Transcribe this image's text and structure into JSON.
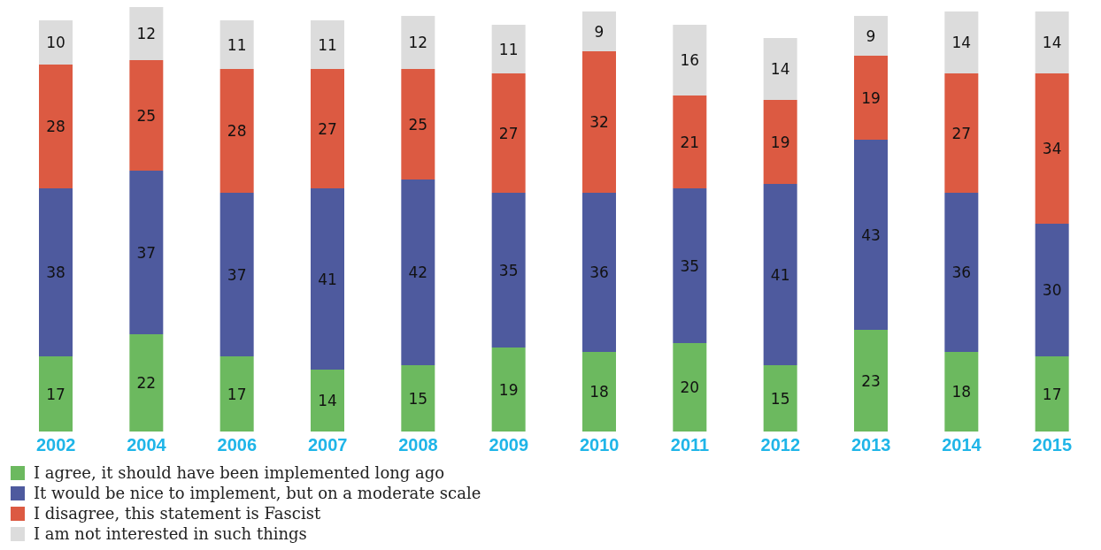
{
  "chart_data": {
    "type": "bar",
    "stacked": true,
    "data_labels": true,
    "tick_labels": "x",
    "grid": false,
    "legend": "bottom left",
    "categories": [
      "2002",
      "2004",
      "2006",
      "2007",
      "2008",
      "2009",
      "2010",
      "2011",
      "2012",
      "2013",
      "2014",
      "2015"
    ],
    "series": [
      {
        "name": "I agree, it should have been implemented long ago",
        "color": "#6cb95f",
        "values": [
          17,
          22,
          17,
          14,
          15,
          19,
          18,
          20,
          15,
          23,
          18,
          17
        ]
      },
      {
        "name": "It would be nice to implement, but on a moderate scale",
        "color": "#4e5a9e",
        "values": [
          38,
          37,
          37,
          41,
          42,
          35,
          36,
          35,
          41,
          43,
          36,
          30
        ]
      },
      {
        "name": "I disagree, this statement is Fascist",
        "color": "#dc5a42",
        "values": [
          28,
          25,
          28,
          27,
          25,
          27,
          32,
          21,
          19,
          19,
          27,
          34
        ]
      },
      {
        "name": "I am not interested in such things",
        "color": "#dcdcdc",
        "values": [
          10,
          12,
          11,
          11,
          12,
          11,
          9,
          16,
          14,
          9,
          14,
          14
        ]
      }
    ]
  }
}
